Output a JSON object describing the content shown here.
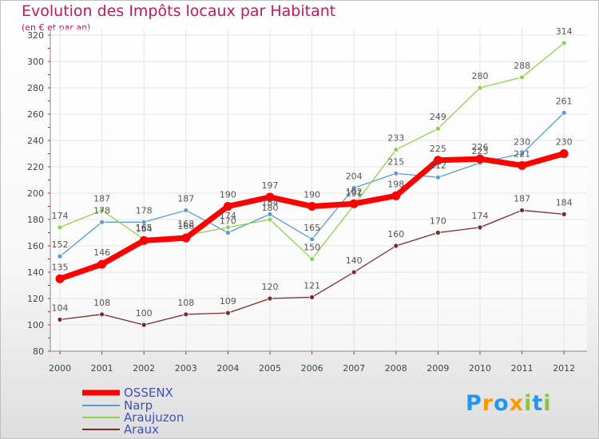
{
  "chart_data": {
    "type": "line",
    "title": "Evolution des Impôts locaux par Habitant",
    "subtitle": "(en € et par an)",
    "x": [
      "2000",
      "2001",
      "2002",
      "2003",
      "2004",
      "2005",
      "2006",
      "2007",
      "2008",
      "2009",
      "2010",
      "2011",
      "2012"
    ],
    "ylim": [
      80,
      320
    ],
    "yticks": [
      80,
      100,
      120,
      140,
      160,
      180,
      200,
      220,
      240,
      260,
      280,
      300,
      320
    ],
    "grid": true,
    "legend_position": "bottom-left",
    "series": [
      {
        "name": "OSSENX",
        "color": "#ff0000",
        "values": [
          135,
          146,
          164,
          166,
          190,
          197,
          190,
          192,
          198,
          225,
          226,
          221,
          230
        ],
        "labels": [
          "135",
          "146",
          "164",
          "166",
          "190",
          "197",
          "190",
          "192",
          "198",
          "225",
          "226",
          "221",
          "230"
        ]
      },
      {
        "name": "Narp",
        "color": "#5b9bd5",
        "values": [
          152,
          178,
          178,
          187,
          170,
          184,
          165,
          204,
          215,
          212,
          223,
          230,
          261
        ],
        "labels": [
          "152",
          "178",
          "178",
          "187",
          "170",
          "184",
          "165",
          "204",
          "215",
          "212",
          "223",
          "230",
          "261"
        ]
      },
      {
        "name": "Araujuzon",
        "color": "#8fd14f",
        "values": [
          174,
          187,
          165,
          168,
          174,
          180,
          150,
          191,
          233,
          249,
          280,
          288,
          314
        ],
        "labels": [
          "174",
          "187",
          "165",
          "168",
          "174",
          "180",
          "150",
          "191",
          "233",
          "249",
          "280",
          "288",
          "314"
        ]
      },
      {
        "name": "Araux",
        "color": "#7b2a2a",
        "values": [
          104,
          108,
          100,
          108,
          109,
          120,
          121,
          140,
          160,
          170,
          174,
          187,
          184
        ],
        "labels": [
          "104",
          "108",
          "100",
          "108",
          "109",
          "120",
          "121",
          "140",
          "160",
          "170",
          "174",
          "187",
          "184"
        ]
      }
    ]
  },
  "logo": {
    "text": "Proxiti",
    "letters": [
      "P",
      "r",
      "o",
      "x",
      "i",
      "t",
      "i"
    ],
    "colors": [
      "#2196f3",
      "#ff9800",
      "#2196f3",
      "#ff9800",
      "#8bc34a",
      "#2196f3",
      "#8bc34a"
    ]
  }
}
